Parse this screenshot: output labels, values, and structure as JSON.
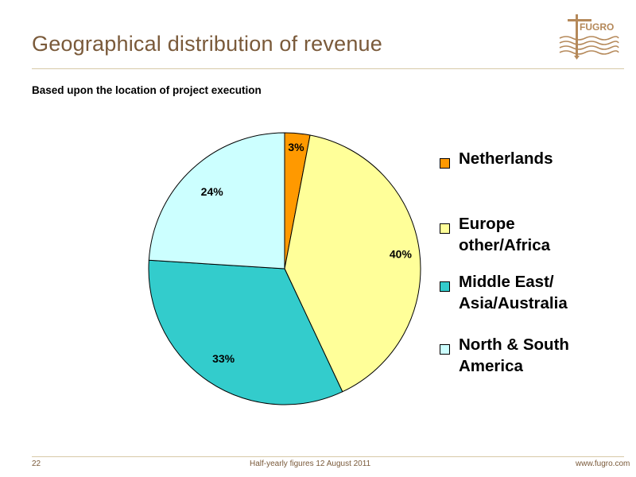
{
  "slide": {
    "title": "Geographical distribution of revenue",
    "subtitle": "Based upon the location of project execution"
  },
  "logo": {
    "text": "FUGRO",
    "color": "#b5895a"
  },
  "footer": {
    "page_number": "22",
    "center_text": "Half-yearly figures 12 August 2011",
    "url": "www.fugro.com"
  },
  "chart_data": {
    "type": "pie",
    "title": "",
    "start_angle_deg": 0,
    "direction": "clockwise",
    "slices": [
      {
        "name": "Netherlands",
        "value": 3,
        "label": "3%",
        "color": "#ff9900"
      },
      {
        "name": "Europe\nother/Africa",
        "value": 40,
        "label": "40%",
        "color": "#ffff99"
      },
      {
        "name": "Middle East/\nAsia/Australia",
        "value": 33,
        "label": "33%",
        "color": "#33cccc"
      },
      {
        "name": "North & South\nAmerica",
        "value": 24,
        "label": "24%",
        "color": "#ccffff"
      }
    ],
    "legend_position": "right"
  }
}
